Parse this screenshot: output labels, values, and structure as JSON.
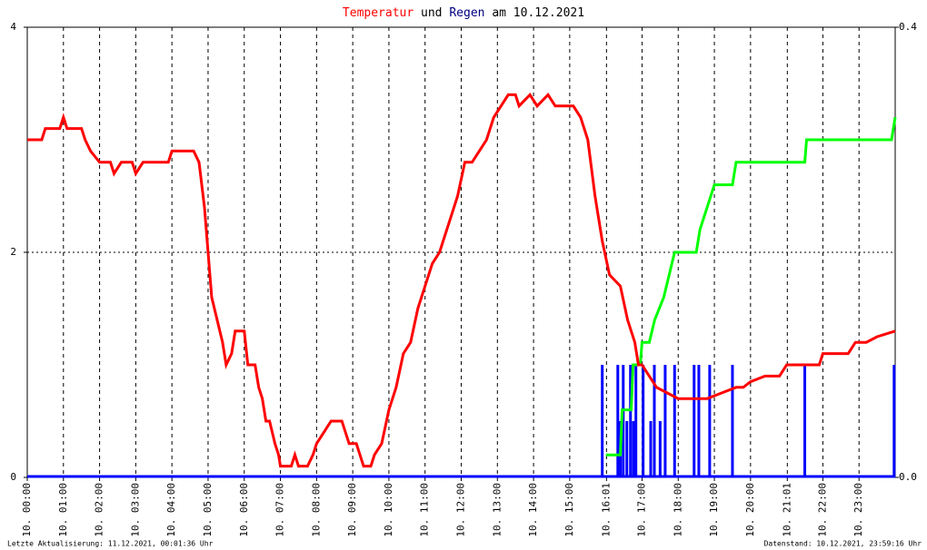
{
  "chart_data": {
    "type": "line",
    "title_connector": "und",
    "title_date": "am 10.12.2021",
    "footer_left": "Letzte Aktualisierung: 11.12.2021, 00:01:36 Uhr",
    "footer_right": "Datenstand: 10.12.2021, 23:59:16 Uhr",
    "xlim": [
      0,
      24
    ],
    "xticks": [
      {
        "value": 0,
        "label": "10. 00:00"
      },
      {
        "value": 1,
        "label": "10. 01:00"
      },
      {
        "value": 2,
        "label": "10. 02:00"
      },
      {
        "value": 3,
        "label": "10. 03:00"
      },
      {
        "value": 4,
        "label": "10. 04:00"
      },
      {
        "value": 5,
        "label": "10. 05:00"
      },
      {
        "value": 6,
        "label": "10. 06:00"
      },
      {
        "value": 7,
        "label": "10. 07:00"
      },
      {
        "value": 8,
        "label": "10. 08:00"
      },
      {
        "value": 9,
        "label": "10. 09:00"
      },
      {
        "value": 10,
        "label": "10. 10:00"
      },
      {
        "value": 11,
        "label": "10. 11:00"
      },
      {
        "value": 12,
        "label": "10. 12:00"
      },
      {
        "value": 13,
        "label": "10. 13:00"
      },
      {
        "value": 14,
        "label": "10. 14:00"
      },
      {
        "value": 15,
        "label": "10. 15:00"
      },
      {
        "value": 16.017,
        "label": "10. 16:01"
      },
      {
        "value": 17,
        "label": "10. 17:00"
      },
      {
        "value": 18,
        "label": "10. 18:00"
      },
      {
        "value": 19,
        "label": "10. 19:00"
      },
      {
        "value": 20,
        "label": "10. 20:00"
      },
      {
        "value": 21.017,
        "label": "10. 21:01"
      },
      {
        "value": 22,
        "label": "10. 22:00"
      },
      {
        "value": 23,
        "label": "10. 23:00"
      }
    ],
    "ylim": [
      0,
      4
    ],
    "yticks": [
      0,
      2,
      4
    ],
    "y2lim": [
      0,
      0.4
    ],
    "y2ticks": [
      {
        "value": 0,
        "label": "0.0"
      },
      0.4
    ],
    "grid": true,
    "series": [
      {
        "name": "Temperatur",
        "color": "#ff0000",
        "x": [
          0,
          0.4,
          0.5,
          0.9,
          1.0,
          1.1,
          1.5,
          1.6,
          1.75,
          2.0,
          2.3,
          2.4,
          2.6,
          2.9,
          3.0,
          3.2,
          3.9,
          4.0,
          4.6,
          4.75,
          4.9,
          5.0,
          5.1,
          5.25,
          5.4,
          5.5,
          5.65,
          5.75,
          6.0,
          6.1,
          6.3,
          6.4,
          6.5,
          6.6,
          6.7,
          6.85,
          6.95,
          7.0,
          7.3,
          7.4,
          7.5,
          7.75,
          7.9,
          8.0,
          8.2,
          8.4,
          8.7,
          8.8,
          8.9,
          9.1,
          9.2,
          9.3,
          9.5,
          9.6,
          9.8,
          10.0,
          10.2,
          10.4,
          10.6,
          10.8,
          10.9,
          11.1,
          11.2,
          11.4,
          11.5,
          11.7,
          11.9,
          12.1,
          12.3,
          12.5,
          12.7,
          12.9,
          13.1,
          13.3,
          13.5,
          13.6,
          13.9,
          14.1,
          14.4,
          14.6,
          15.1,
          15.3,
          15.5,
          15.7,
          15.9,
          16.1,
          16.4,
          16.6,
          16.8,
          16.9,
          17.0,
          17.2,
          17.4,
          17.7,
          18.0,
          18.8,
          19.2,
          19.6,
          19.8,
          20.0,
          20.4,
          20.8,
          21.0,
          21.9,
          22.0,
          22.7,
          22.9,
          23.2,
          23.5,
          24.0
        ],
        "values": [
          3.0,
          3.0,
          3.1,
          3.1,
          3.2,
          3.1,
          3.1,
          3.0,
          2.9,
          2.8,
          2.8,
          2.7,
          2.8,
          2.8,
          2.7,
          2.8,
          2.8,
          2.9,
          2.9,
          2.8,
          2.4,
          2.0,
          1.6,
          1.4,
          1.2,
          1.0,
          1.1,
          1.3,
          1.3,
          1.0,
          1.0,
          0.8,
          0.7,
          0.5,
          0.5,
          0.3,
          0.2,
          0.1,
          0.1,
          0.2,
          0.1,
          0.1,
          0.2,
          0.3,
          0.4,
          0.5,
          0.5,
          0.4,
          0.3,
          0.3,
          0.2,
          0.1,
          0.1,
          0.2,
          0.3,
          0.6,
          0.8,
          1.1,
          1.2,
          1.5,
          1.6,
          1.8,
          1.9,
          2.0,
          2.1,
          2.3,
          2.5,
          2.8,
          2.8,
          2.9,
          3.0,
          3.2,
          3.3,
          3.4,
          3.4,
          3.3,
          3.4,
          3.3,
          3.4,
          3.3,
          3.3,
          3.2,
          3.0,
          2.5,
          2.1,
          1.8,
          1.7,
          1.4,
          1.2,
          1.0,
          1.0,
          0.9,
          0.8,
          0.75,
          0.7,
          0.7,
          0.75,
          0.8,
          0.8,
          0.85,
          0.9,
          0.9,
          1.0,
          1.0,
          1.1,
          1.1,
          1.2,
          1.2,
          1.25,
          1.3
        ]
      },
      {
        "name": "Regen",
        "color": "#0000ff",
        "type": "bar",
        "axis": "y2",
        "x": [
          15.9,
          16.33,
          16.4,
          16.48,
          16.58,
          16.68,
          16.76,
          16.83,
          17.03,
          17.24,
          17.34,
          17.5,
          17.64,
          17.9,
          18.44,
          18.57,
          18.87,
          19.5,
          21.5,
          23.97
        ],
        "values": [
          0.1,
          0.1,
          0.05,
          0.1,
          0.05,
          0.1,
          0.05,
          0.1,
          0.1,
          0.05,
          0.1,
          0.05,
          0.1,
          0.1,
          0.1,
          0.1,
          0.1,
          0.1,
          0.1,
          0.1
        ]
      },
      {
        "color": "#00ff00",
        "axis": "y2",
        "x": [
          16.0,
          16.4,
          16.45,
          16.7,
          16.75,
          16.95,
          17.0,
          17.2,
          17.35,
          17.6,
          17.75,
          17.9,
          18.5,
          18.6,
          18.8,
          19.0,
          19.5,
          19.6,
          21.5,
          21.55,
          23.9,
          24.0
        ],
        "values": [
          0.02,
          0.02,
          0.06,
          0.06,
          0.1,
          0.1,
          0.12,
          0.12,
          0.14,
          0.16,
          0.18,
          0.2,
          0.2,
          0.22,
          0.24,
          0.26,
          0.26,
          0.28,
          0.28,
          0.3,
          0.3,
          0.32
        ]
      }
    ]
  }
}
